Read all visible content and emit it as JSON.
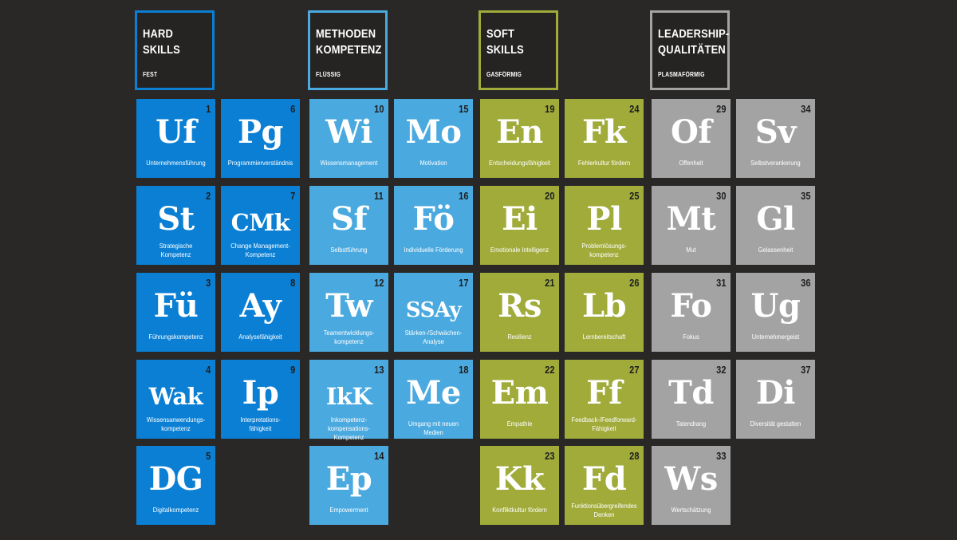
{
  "colors": {
    "background": "#2a2827",
    "hard": "#0a7fd4",
    "methoden": "#4aa9df",
    "soft": "#a0ab3a",
    "leadership": "#a3a3a3",
    "number": "#1e1e1e"
  },
  "categories": [
    {
      "id": "hard",
      "title": "HARD SKILLS",
      "subtitle": "FEST",
      "color": "#0a7fd4"
    },
    {
      "id": "methoden",
      "title": "METHODEN\nKOMPETENZ",
      "subtitle": "FLÜSSIG",
      "color": "#4aa9df"
    },
    {
      "id": "soft",
      "title": "SOFT SKILLS",
      "subtitle": "GASFÖRMIG",
      "color": "#a0ab3a"
    },
    {
      "id": "leadership",
      "title": "LEADERSHIP-\nQUALITÄTEN",
      "subtitle": "PLASMAFÖRMIG",
      "color": "#a3a3a3"
    }
  ],
  "elements": [
    {
      "number": "1",
      "symbol": "Uf",
      "name": "Unternehmensführung",
      "category": "hard"
    },
    {
      "number": "2",
      "symbol": "St",
      "name": "Strategische\nKompetenz",
      "category": "hard"
    },
    {
      "number": "3",
      "symbol": "Fü",
      "name": "Führungskompetenz",
      "category": "hard"
    },
    {
      "number": "4",
      "symbol": "Wak",
      "name": "Wissensanwendungs-\nkompetenz",
      "category": "hard"
    },
    {
      "number": "5",
      "symbol": "DG",
      "name": "Digitalkompetenz",
      "category": "hard"
    },
    {
      "number": "6",
      "symbol": "Pg",
      "name": "Programmierverständnis",
      "category": "hard"
    },
    {
      "number": "7",
      "symbol": "CMk",
      "name": "Change Management-\nKompetenz",
      "category": "hard"
    },
    {
      "number": "8",
      "symbol": "Ay",
      "name": "Analysefähigkeit",
      "category": "hard"
    },
    {
      "number": "9",
      "symbol": "Ip",
      "name": "Interpretations-\nfähigkeit",
      "category": "hard"
    },
    {
      "number": "10",
      "symbol": "Wi",
      "name": "Wissensmanagement",
      "category": "methoden"
    },
    {
      "number": "11",
      "symbol": "Sf",
      "name": "Selbstführung",
      "category": "methoden"
    },
    {
      "number": "12",
      "symbol": "Tw",
      "name": "Teamentwicklungs-\nkompetenz",
      "category": "methoden"
    },
    {
      "number": "13",
      "symbol": "IkK",
      "name": "Inkompetenz-\nkompensations-Kompetenz",
      "category": "methoden"
    },
    {
      "number": "14",
      "symbol": "Ep",
      "name": "Empowerment",
      "category": "methoden"
    },
    {
      "number": "15",
      "symbol": "Mo",
      "name": "Motivation",
      "category": "methoden"
    },
    {
      "number": "16",
      "symbol": "Fö",
      "name": "Individuelle Förderung",
      "category": "methoden"
    },
    {
      "number": "17",
      "symbol": "SSAy",
      "name": "Stärken-/Schwächen-\nAnalyse",
      "category": "methoden"
    },
    {
      "number": "18",
      "symbol": "Me",
      "name": "Umgang mit neuen Medien",
      "category": "methoden"
    },
    {
      "number": "19",
      "symbol": "En",
      "name": "Entscheidungsfähigkeit",
      "category": "soft"
    },
    {
      "number": "20",
      "symbol": "Ei",
      "name": "Emotionale Intelligenz",
      "category": "soft"
    },
    {
      "number": "21",
      "symbol": "Rs",
      "name": "Resilienz",
      "category": "soft"
    },
    {
      "number": "22",
      "symbol": "Em",
      "name": "Empathie",
      "category": "soft"
    },
    {
      "number": "23",
      "symbol": "Kk",
      "name": "Konfliktkultur fördern",
      "category": "soft"
    },
    {
      "number": "24",
      "symbol": "Fk",
      "name": "Fehlerkultur fördern",
      "category": "soft"
    },
    {
      "number": "25",
      "symbol": "Pl",
      "name": "Problemlösungs-\nkompetenz",
      "category": "soft"
    },
    {
      "number": "26",
      "symbol": "Lb",
      "name": "Lernbereitschaft",
      "category": "soft"
    },
    {
      "number": "27",
      "symbol": "Ff",
      "name": "Feedback-/Feedforward-\nFähigkeit",
      "category": "soft"
    },
    {
      "number": "28",
      "symbol": "Fd",
      "name": "Funktionsübergreifendes\nDenken",
      "category": "soft"
    },
    {
      "number": "29",
      "symbol": "Of",
      "name": "Offenheit",
      "category": "leadership"
    },
    {
      "number": "30",
      "symbol": "Mt",
      "name": "Mut",
      "category": "leadership"
    },
    {
      "number": "31",
      "symbol": "Fo",
      "name": "Fokus",
      "category": "leadership"
    },
    {
      "number": "32",
      "symbol": "Td",
      "name": "Tatendrang",
      "category": "leadership"
    },
    {
      "number": "33",
      "symbol": "Ws",
      "name": "Wertschätzung",
      "category": "leadership"
    },
    {
      "number": "34",
      "symbol": "Sv",
      "name": "Selbstverankerung",
      "category": "leadership"
    },
    {
      "number": "35",
      "symbol": "Gl",
      "name": "Gelassenheit",
      "category": "leadership"
    },
    {
      "number": "36",
      "symbol": "Ug",
      "name": "Unternehmergeist",
      "category": "leadership"
    },
    {
      "number": "37",
      "symbol": "Di",
      "name": "Diversität gestalten",
      "category": "leadership"
    }
  ]
}
